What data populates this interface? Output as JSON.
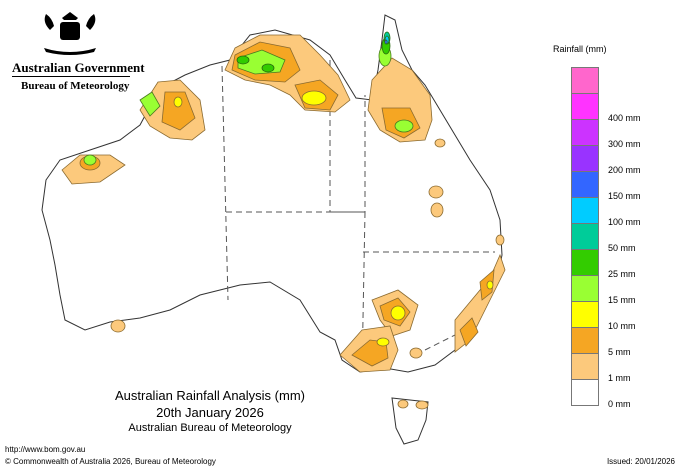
{
  "header": {
    "government": "Australian Government",
    "bureau": "Bureau of Meteorology"
  },
  "title": {
    "line1": "Australian Rainfall Analysis (mm)",
    "line2": "20th January 2026",
    "line3": "Australian Bureau of Meteorology"
  },
  "legend": {
    "title": "Rainfall (mm)",
    "items": [
      {
        "label": "",
        "color": "#ff66cc"
      },
      {
        "label": "400 mm",
        "color": "#ff33ff"
      },
      {
        "label": "300 mm",
        "color": "#cc33ff"
      },
      {
        "label": "200 mm",
        "color": "#9933ff"
      },
      {
        "label": "150 mm",
        "color": "#3366ff"
      },
      {
        "label": "100 mm",
        "color": "#00ccff"
      },
      {
        "label": "50 mm",
        "color": "#00cc99"
      },
      {
        "label": "25 mm",
        "color": "#33cc00"
      },
      {
        "label": "15 mm",
        "color": "#99ff33"
      },
      {
        "label": "10 mm",
        "color": "#ffff00"
      },
      {
        "label": "5 mm",
        "color": "#f5a623"
      },
      {
        "label": "1 mm",
        "color": "#fcc97c"
      },
      {
        "label": "0 mm",
        "color": "#ffffff"
      }
    ]
  },
  "footer": {
    "url": "http://www.bom.gov.au",
    "copyright": "© Commonwealth of Australia 2026, Bureau of Meteorology",
    "issued": "Issued: 20/01/2026"
  }
}
